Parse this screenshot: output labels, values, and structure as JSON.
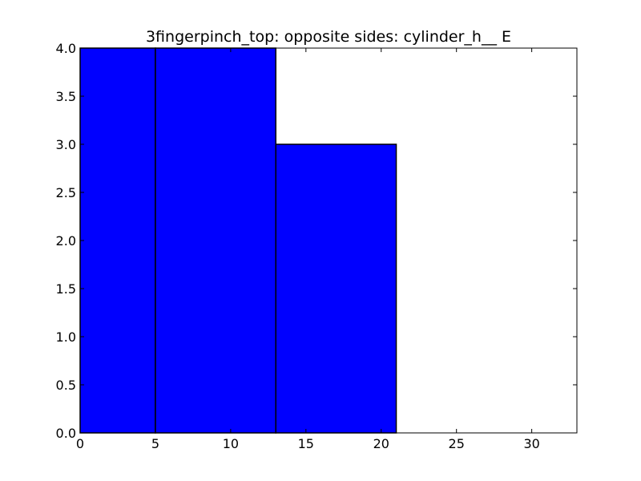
{
  "chart_data": {
    "type": "bar",
    "title": "3fingerpinch_top: opposite sides: cylinder_h__ E",
    "xlabel": "",
    "ylabel": "",
    "bins": [
      {
        "x0": 0,
        "x1": 5,
        "value": 4
      },
      {
        "x0": 5,
        "x1": 13,
        "value": 4
      },
      {
        "x0": 13,
        "x1": 21,
        "value": 3
      }
    ],
    "xlim": [
      0,
      33
    ],
    "ylim": [
      0,
      4
    ],
    "x_ticks": [
      0,
      5,
      10,
      15,
      20,
      25,
      30
    ],
    "y_ticks": [
      0.0,
      0.5,
      1.0,
      1.5,
      2.0,
      2.5,
      3.0,
      3.5,
      4.0
    ],
    "x_tick_labels": [
      "0",
      "5",
      "10",
      "15",
      "20",
      "25",
      "30"
    ],
    "y_tick_labels": [
      "0.0",
      "0.5",
      "1.0",
      "1.5",
      "2.0",
      "2.5",
      "3.0",
      "3.5",
      "4.0"
    ],
    "bar_color": "#0000ff",
    "edge_color": "#000000",
    "grid": false,
    "legend": "none"
  }
}
